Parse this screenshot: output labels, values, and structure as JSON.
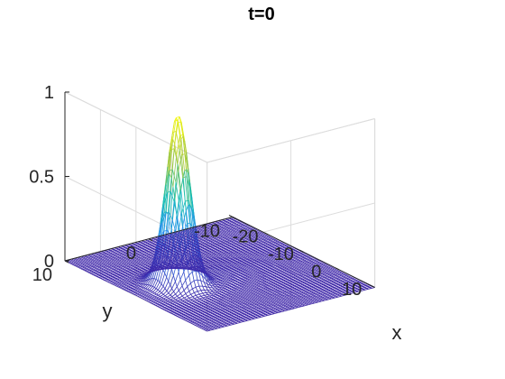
{
  "chart_data": {
    "type": "surface",
    "title": "t=0",
    "xlabel": "x",
    "ylabel": "y",
    "zlabel": "",
    "xlim": [
      -20,
      20
    ],
    "ylim": [
      -10,
      10
    ],
    "zlim": [
      0,
      1
    ],
    "x_ticks": [
      "-20",
      "-10",
      "0",
      "10"
    ],
    "y_ticks": [
      "-10",
      "0",
      "10"
    ],
    "z_ticks": [
      "0",
      "0.5",
      "1"
    ],
    "x_tick_values": [
      -20,
      -10,
      0,
      10
    ],
    "y_tick_values": [
      -10,
      0,
      10
    ],
    "z_tick_values": [
      0,
      0.5,
      1
    ],
    "peak": {
      "x": 0,
      "y": 5,
      "z": 1
    },
    "grid": true,
    "colormap": "parula",
    "colors": {
      "low": "#3e26a8",
      "mid": "#13beb8",
      "high": "#f9fb0e",
      "grid": "#dcdcdc",
      "axis": "#262626"
    }
  }
}
